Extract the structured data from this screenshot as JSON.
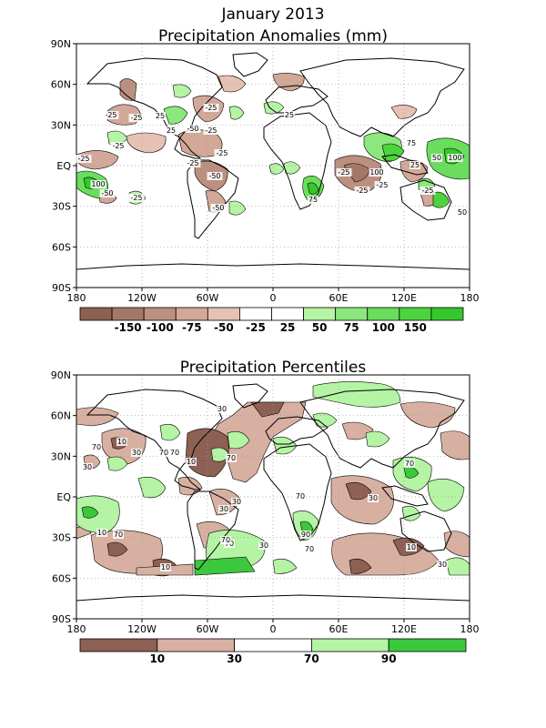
{
  "title": "January 2013",
  "panels": {
    "anomalies": {
      "title": "Precipitation Anomalies (mm)",
      "y_ticks": [
        "90N",
        "60N",
        "30N",
        "EQ",
        "30S",
        "60S",
        "90S"
      ],
      "x_ticks": [
        "180",
        "120W",
        "60W",
        "0",
        "60E",
        "120E",
        "180"
      ],
      "colorbar": {
        "colors": [
          "#8c6052",
          "#a47868",
          "#bc9080",
          "#d2a898",
          "#e6c2b4",
          "#ffffff",
          "#ffffff",
          "#b4f4a4",
          "#8ce87c",
          "#6ade5c",
          "#4cd43e",
          "#34c82c"
        ],
        "labels": [
          "-150",
          "-100",
          "-75",
          "-50",
          "-25",
          "25",
          "50",
          "75",
          "100",
          "150"
        ]
      },
      "contour_labels": [
        {
          "t": "-25"
        },
        {
          "t": "-25"
        },
        {
          "t": "25"
        },
        {
          "t": "-25"
        },
        {
          "t": "25"
        },
        {
          "t": "-50"
        },
        {
          "t": "-25"
        },
        {
          "t": "-25"
        },
        {
          "t": "-25"
        },
        {
          "t": "100"
        },
        {
          "t": "-50"
        },
        {
          "t": "-25"
        },
        {
          "t": "-50"
        },
        {
          "t": "-25"
        },
        {
          "t": "-50"
        },
        {
          "t": "-25"
        },
        {
          "t": "25"
        },
        {
          "t": "75"
        },
        {
          "t": "-25"
        },
        {
          "t": "100"
        },
        {
          "t": "-25"
        },
        {
          "t": "75"
        },
        {
          "t": "50"
        },
        {
          "t": "100"
        },
        {
          "t": "25"
        },
        {
          "t": "-25"
        },
        {
          "t": "-25"
        },
        {
          "t": "50"
        }
      ]
    },
    "percentiles": {
      "title": "Precipitation Percentiles",
      "y_ticks": [
        "90N",
        "60N",
        "30N",
        "EQ",
        "30S",
        "60S",
        "90S"
      ],
      "x_ticks": [
        "180",
        "120W",
        "60W",
        "0",
        "60E",
        "120E",
        "180"
      ],
      "colorbar": {
        "colors": [
          "#8c6052",
          "#d8b0a2",
          "#ffffff",
          "#b4f4a4",
          "#3cc83c"
        ],
        "labels": [
          "10",
          "30",
          "70",
          "90"
        ]
      },
      "contour_labels": [
        {
          "t": "30"
        },
        {
          "t": "70"
        },
        {
          "t": "10"
        },
        {
          "t": "30"
        },
        {
          "t": "70"
        },
        {
          "t": "30"
        },
        {
          "t": "10"
        },
        {
          "t": "70"
        },
        {
          "t": "70"
        },
        {
          "t": "30"
        },
        {
          "t": "70"
        },
        {
          "t": "10"
        },
        {
          "t": "70"
        },
        {
          "t": "30"
        },
        {
          "t": "90"
        },
        {
          "t": "70"
        },
        {
          "t": "70"
        },
        {
          "t": "30"
        },
        {
          "t": "10"
        },
        {
          "t": "70"
        },
        {
          "t": "10"
        },
        {
          "t": "30"
        },
        {
          "t": "70"
        },
        {
          "t": "30"
        }
      ]
    }
  }
}
